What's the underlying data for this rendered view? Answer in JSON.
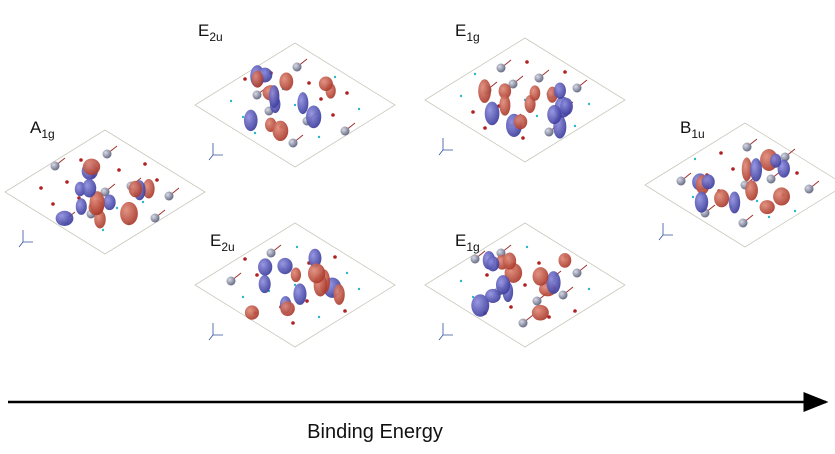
{
  "panels": [
    {
      "symbol": "A",
      "sub": "1g"
    },
    {
      "symbol": "E",
      "sub": "2u"
    },
    {
      "symbol": "E",
      "sub": "2u"
    },
    {
      "symbol": "E",
      "sub": "1g"
    },
    {
      "symbol": "E",
      "sub": "1g"
    },
    {
      "symbol": "B",
      "sub": "1u"
    }
  ],
  "axis_label": "Binding Energy"
}
